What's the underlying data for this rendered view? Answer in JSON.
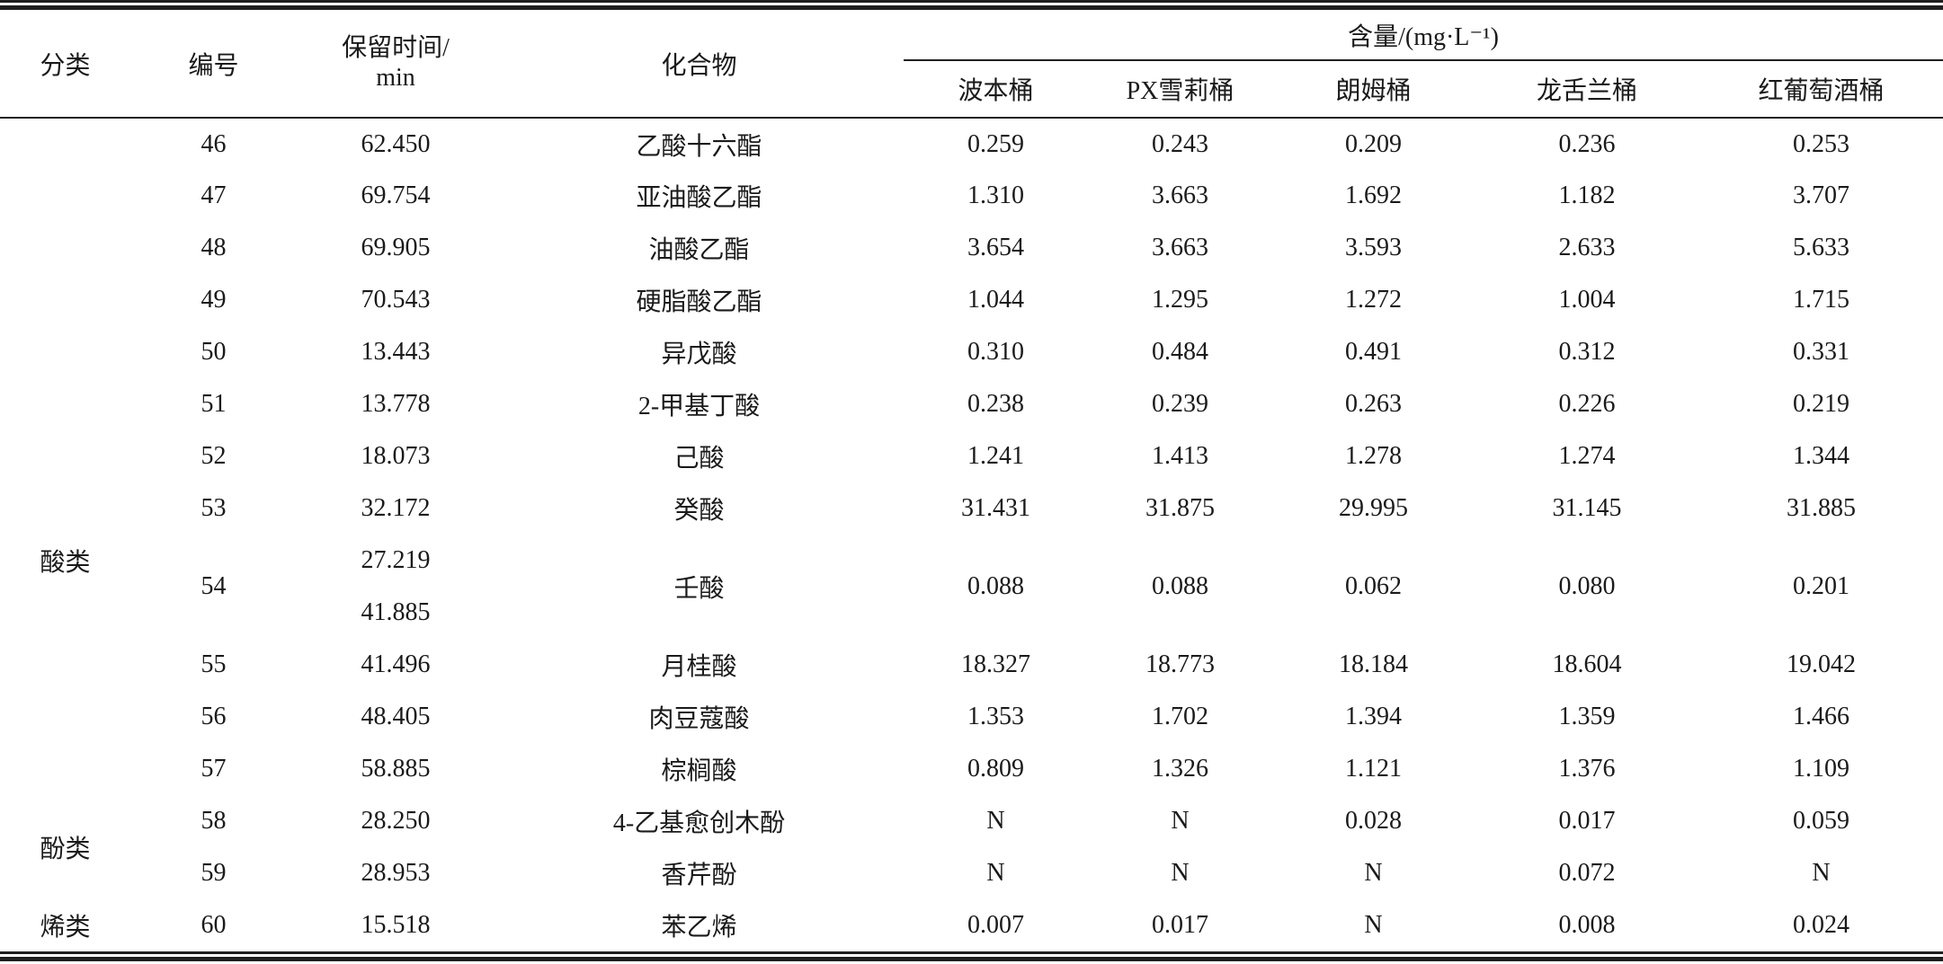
{
  "colors": {
    "rule": "#1f1f1f",
    "text": "#1a1a1a",
    "background": "#ffffff"
  },
  "table": {
    "header": {
      "category": "分类",
      "number": "编号",
      "retention_time": "保留时间/\nmin",
      "compound": "化合物",
      "content_group": "含量/(mg·L⁻¹)",
      "barrels": [
        "波本桶",
        "PX雪莉桶",
        "朗姆桶",
        "龙舌兰桶",
        "红葡萄酒桶"
      ]
    },
    "groups": [
      {
        "label": "",
        "row_count": 4
      },
      {
        "label": "酸类",
        "row_count": 8
      },
      {
        "label": "酚类",
        "row_count": 2
      },
      {
        "label": "烯类",
        "row_count": 1
      }
    ],
    "rows": [
      {
        "no": "46",
        "retention_times": [
          "62.450"
        ],
        "compound": "乙酸十六酯",
        "values": [
          "0.259",
          "0.243",
          "0.209",
          "0.236",
          "0.253"
        ]
      },
      {
        "no": "47",
        "retention_times": [
          "69.754"
        ],
        "compound": "亚油酸乙酯",
        "values": [
          "1.310",
          "3.663",
          "1.692",
          "1.182",
          "3.707"
        ]
      },
      {
        "no": "48",
        "retention_times": [
          "69.905"
        ],
        "compound": "油酸乙酯",
        "values": [
          "3.654",
          "3.663",
          "3.593",
          "2.633",
          "5.633"
        ]
      },
      {
        "no": "49",
        "retention_times": [
          "70.543"
        ],
        "compound": "硬脂酸乙酯",
        "values": [
          "1.044",
          "1.295",
          "1.272",
          "1.004",
          "1.715"
        ]
      },
      {
        "no": "50",
        "retention_times": [
          "13.443"
        ],
        "compound": "异戊酸",
        "values": [
          "0.310",
          "0.484",
          "0.491",
          "0.312",
          "0.331"
        ]
      },
      {
        "no": "51",
        "retention_times": [
          "13.778"
        ],
        "compound": "2-甲基丁酸",
        "values": [
          "0.238",
          "0.239",
          "0.263",
          "0.226",
          "0.219"
        ]
      },
      {
        "no": "52",
        "retention_times": [
          "18.073"
        ],
        "compound": "己酸",
        "values": [
          "1.241",
          "1.413",
          "1.278",
          "1.274",
          "1.344"
        ]
      },
      {
        "no": "53",
        "retention_times": [
          "32.172"
        ],
        "compound": "癸酸",
        "values": [
          "31.431",
          "31.875",
          "29.995",
          "31.145",
          "31.885"
        ]
      },
      {
        "no": "54",
        "retention_times": [
          "27.219",
          "41.885"
        ],
        "compound": "壬酸",
        "values": [
          "0.088",
          "0.088",
          "0.062",
          "0.080",
          "0.201"
        ]
      },
      {
        "no": "55",
        "retention_times": [
          "41.496"
        ],
        "compound": "月桂酸",
        "values": [
          "18.327",
          "18.773",
          "18.184",
          "18.604",
          "19.042"
        ]
      },
      {
        "no": "56",
        "retention_times": [
          "48.405"
        ],
        "compound": "肉豆蔻酸",
        "values": [
          "1.353",
          "1.702",
          "1.394",
          "1.359",
          "1.466"
        ]
      },
      {
        "no": "57",
        "retention_times": [
          "58.885"
        ],
        "compound": "棕榈酸",
        "values": [
          "0.809",
          "1.326",
          "1.121",
          "1.376",
          "1.109"
        ]
      },
      {
        "no": "58",
        "retention_times": [
          "28.250"
        ],
        "compound": "4-乙基愈创木酚",
        "values": [
          "N",
          "N",
          "0.028",
          "0.017",
          "0.059"
        ]
      },
      {
        "no": "59",
        "retention_times": [
          "28.953"
        ],
        "compound": "香芹酚",
        "values": [
          "N",
          "N",
          "N",
          "0.072",
          "N"
        ]
      },
      {
        "no": "60",
        "retention_times": [
          "15.518"
        ],
        "compound": "苯乙烯",
        "values": [
          "0.007",
          "0.017",
          "N",
          "0.008",
          "0.024"
        ]
      }
    ]
  }
}
